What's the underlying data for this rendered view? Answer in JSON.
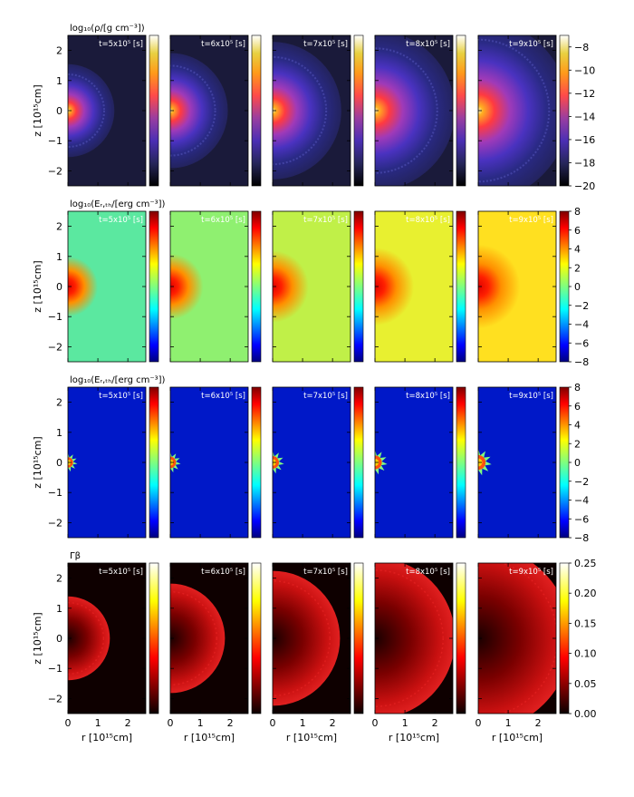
{
  "chart_data": {
    "type": "heatmap",
    "layout": "4 rows x 5 columns of panels; each row shares a colorbar at right",
    "times": [
      "t=5x10⁵ [s]",
      "t=6x10⁵ [s]",
      "t=7x10⁵ [s]",
      "t=8x10⁵ [s]",
      "t=9x10⁵ [s]"
    ],
    "times_values_s": [
      500000,
      600000,
      700000,
      800000,
      900000
    ],
    "xlabel": "r [10¹⁵cm]",
    "ylabel": "z [10¹⁵cm]",
    "xlim": [
      0,
      2.6
    ],
    "ylim": [
      -2.5,
      2.5
    ],
    "xticks": [
      "0",
      "1",
      "2"
    ],
    "yticks": [
      "2",
      "1",
      "0",
      "−1",
      "−2"
    ],
    "rows": [
      {
        "title": "log₁₀(ρ/[g cm⁻³])",
        "colormap": "CMRmap",
        "clim": [
          -20,
          -7
        ],
        "colorbar_ticks": [
          "−8",
          "−10",
          "−12",
          "−14",
          "−16",
          "−18",
          "−20"
        ],
        "colorbar_tick_values": [
          -8,
          -10,
          -12,
          -14,
          -16,
          -18,
          -20
        ]
      },
      {
        "title": "log₁₀(Eᵣ,ₜₕ/[erg cm⁻³])",
        "colormap": "jet",
        "clim": [
          -8,
          8
        ],
        "colorbar_ticks": [
          "8",
          "6",
          "4",
          "2",
          "0",
          "−2",
          "−4",
          "−6",
          "−8"
        ],
        "colorbar_tick_values": [
          8,
          6,
          4,
          2,
          0,
          -2,
          -4,
          -6,
          -8
        ]
      },
      {
        "title": "log₁₀(Eᵣ,ₜₕ/[erg cm⁻³])",
        "colormap": "jet",
        "clim": [
          -8,
          8
        ],
        "colorbar_ticks": [
          "8",
          "6",
          "4",
          "2",
          "0",
          "−2",
          "−4",
          "−6",
          "−8"
        ],
        "colorbar_tick_values": [
          8,
          6,
          4,
          2,
          0,
          -2,
          -4,
          -6,
          -8
        ]
      },
      {
        "title": "Γβ",
        "colormap": "hot",
        "clim": [
          0,
          0.25
        ],
        "colorbar_ticks": [
          "0.25",
          "0.20",
          "0.15",
          "0.10",
          "0.05",
          "0.00"
        ],
        "colorbar_tick_values": [
          0.25,
          0.2,
          0.15,
          0.1,
          0.05,
          0.0
        ]
      }
    ]
  }
}
